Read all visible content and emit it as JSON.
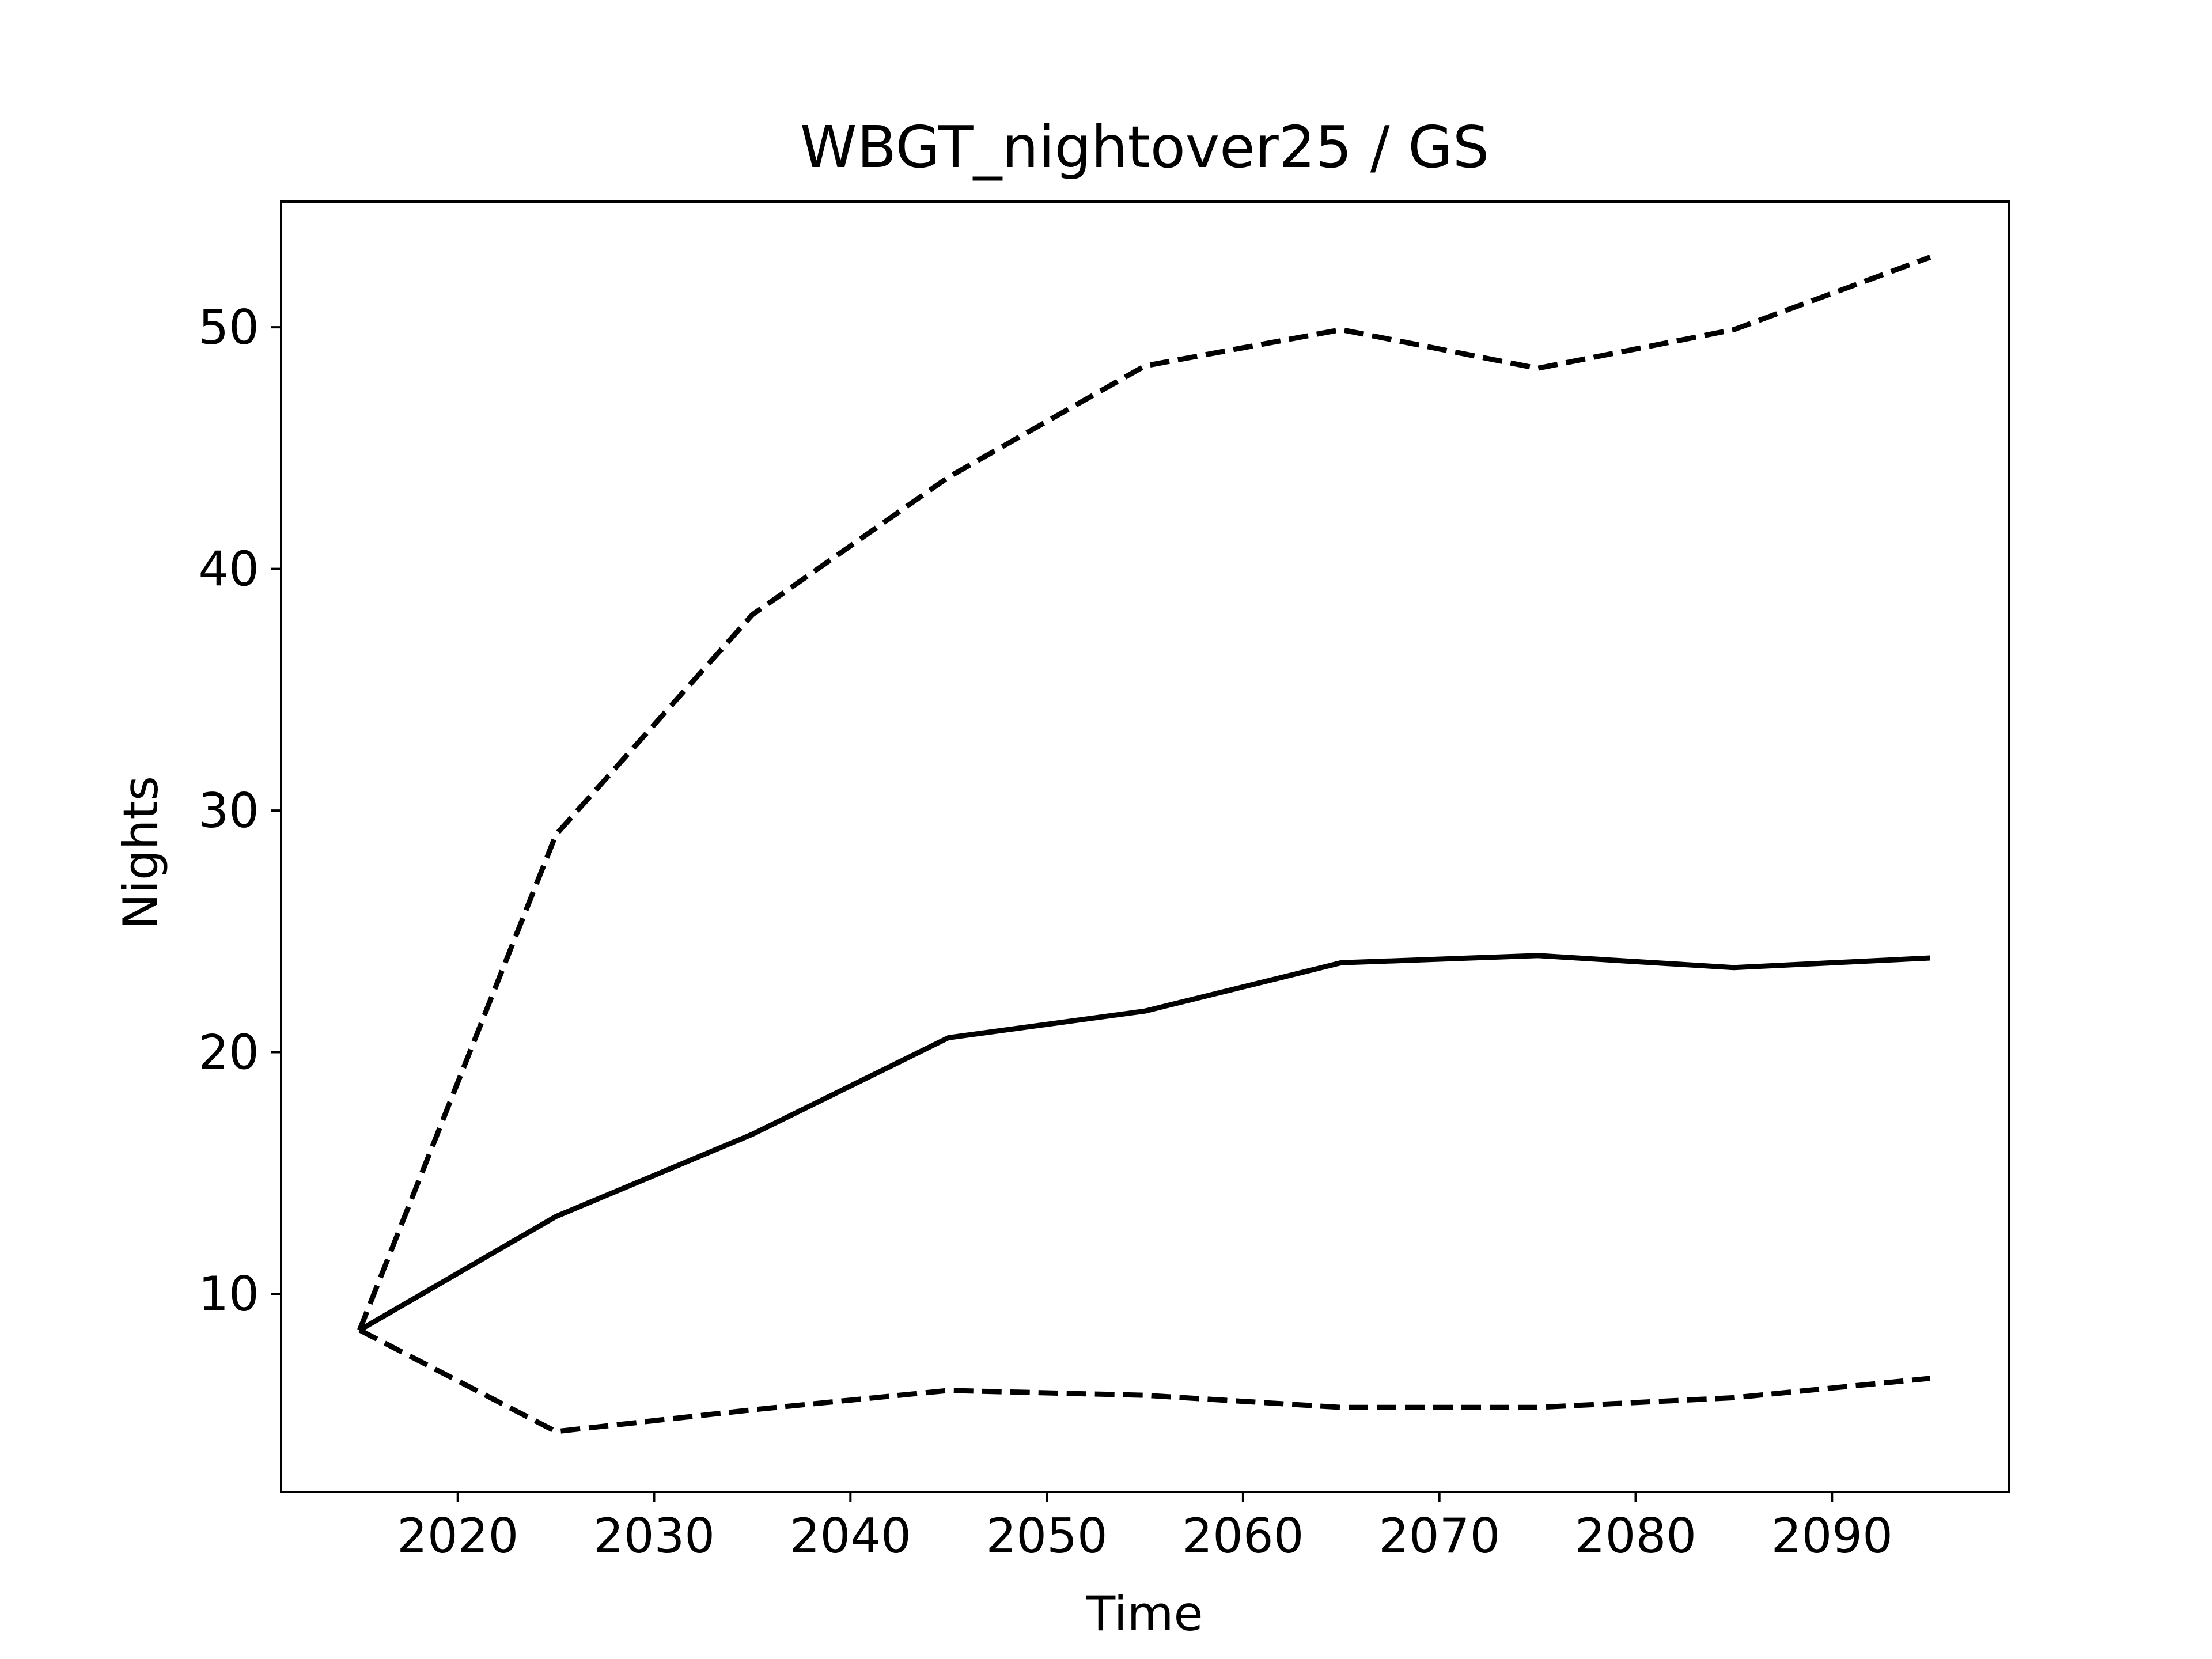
{
  "chart_data": {
    "type": "line",
    "title": "WBGT_nightover25 / GS",
    "xlabel": "Time",
    "ylabel": "Nights",
    "xlim": [
      2011,
      2099
    ],
    "ylim": [
      1.8,
      55.2
    ],
    "xticks": [
      2020,
      2030,
      2040,
      2050,
      2060,
      2070,
      2080,
      2090
    ],
    "yticks": [
      10,
      20,
      30,
      40,
      50
    ],
    "grid": false,
    "legend": "none",
    "x": [
      2015,
      2025,
      2035,
      2045,
      2055,
      2065,
      2075,
      2085,
      2095
    ],
    "series": [
      {
        "style": "dashed",
        "color": "#000000",
        "values": [
          8.5,
          29.0,
          38.1,
          43.8,
          48.4,
          49.9,
          48.3,
          49.9,
          52.9
        ]
      },
      {
        "style": "solid",
        "color": "#000000",
        "values": [
          8.5,
          13.2,
          16.6,
          20.6,
          21.7,
          23.7,
          24.0,
          23.5,
          23.9
        ]
      },
      {
        "style": "dashed",
        "color": "#000000",
        "values": [
          8.5,
          4.3,
          5.2,
          6.0,
          5.8,
          5.3,
          5.3,
          5.7,
          6.5
        ]
      }
    ]
  }
}
